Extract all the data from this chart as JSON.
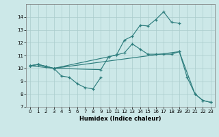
{
  "xlabel": "Humidex (Indice chaleur)",
  "bg_color": "#cce8e8",
  "grid_color": "#aacccc",
  "line_color": "#2d7d7d",
  "xlim": [
    -0.5,
    23.5
  ],
  "ylim": [
    7,
    15
  ],
  "yticks": [
    7,
    8,
    9,
    10,
    11,
    12,
    13,
    14
  ],
  "xticks": [
    0,
    1,
    2,
    3,
    4,
    5,
    6,
    7,
    8,
    9,
    10,
    11,
    12,
    13,
    14,
    15,
    16,
    17,
    18,
    19,
    20,
    21,
    22,
    23
  ],
  "line1_x": [
    0,
    1,
    2,
    3,
    10,
    11,
    12,
    13,
    14,
    15,
    16,
    17,
    18,
    19
  ],
  "line1_y": [
    10.2,
    10.3,
    10.15,
    10.0,
    10.9,
    11.05,
    12.2,
    12.5,
    13.35,
    13.3,
    13.8,
    14.4,
    13.6,
    13.5
  ],
  "line2_x": [
    0,
    1,
    2,
    3,
    9,
    10,
    11,
    12,
    13,
    14,
    15,
    16,
    17,
    18,
    19,
    20,
    21,
    22,
    23
  ],
  "line2_y": [
    10.2,
    10.3,
    10.15,
    10.0,
    9.9,
    10.9,
    11.05,
    11.2,
    11.9,
    11.5,
    11.1,
    11.1,
    11.1,
    11.1,
    11.3,
    9.3,
    8.0,
    7.5,
    7.35
  ],
  "line3_x": [
    0,
    1,
    2,
    3,
    4,
    5,
    6,
    7,
    8,
    9
  ],
  "line3_y": [
    10.2,
    10.3,
    10.15,
    10.0,
    9.4,
    9.3,
    8.8,
    8.5,
    8.4,
    9.3
  ],
  "line4_x": [
    0,
    3,
    19,
    21,
    22,
    23
  ],
  "line4_y": [
    10.2,
    10.0,
    11.3,
    8.0,
    7.5,
    7.35
  ]
}
